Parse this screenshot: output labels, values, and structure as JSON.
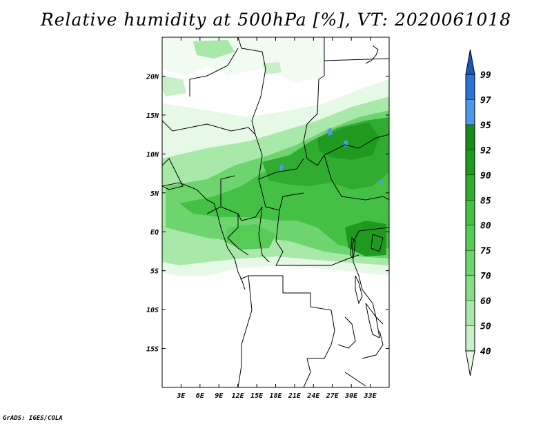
{
  "title": "Relative humidity at 500hPa [%], VT: 2020061018",
  "credit": "GrADS: IGES/COLA",
  "chart_data": {
    "type": "heatmap",
    "variable": "Relative humidity",
    "level": "500hPa",
    "units": "%",
    "valid_time": "2020061018",
    "lon_range": [
      0,
      36
    ],
    "lat_range": [
      -20,
      25
    ],
    "x_tick_labels": [
      "3E",
      "6E",
      "9E",
      "12E",
      "15E",
      "18E",
      "21E",
      "24E",
      "27E",
      "30E",
      "33E"
    ],
    "x_tick_values": [
      3,
      6,
      9,
      12,
      15,
      18,
      21,
      24,
      27,
      30,
      33
    ],
    "y_tick_labels": [
      "20N",
      "15N",
      "10N",
      "5N",
      "EQ",
      "5S",
      "10S",
      "15S"
    ],
    "y_tick_values": [
      20,
      15,
      10,
      5,
      0,
      -5,
      -10,
      -15
    ],
    "colorbar": {
      "levels": [
        "40",
        "50",
        "60",
        "70",
        "75",
        "80",
        "85",
        "90",
        "92",
        "95",
        "97",
        "99"
      ],
      "colors": [
        "#e6f8e6",
        "#c8f0c8",
        "#a8e8a8",
        "#88dc88",
        "#6ed46e",
        "#56cc56",
        "#44c044",
        "#30ac30",
        "#1f9a1f",
        "#1a8a1a",
        "#4f98e8",
        "#2a72d4",
        "#1e56b8"
      ],
      "extend": "both"
    }
  }
}
